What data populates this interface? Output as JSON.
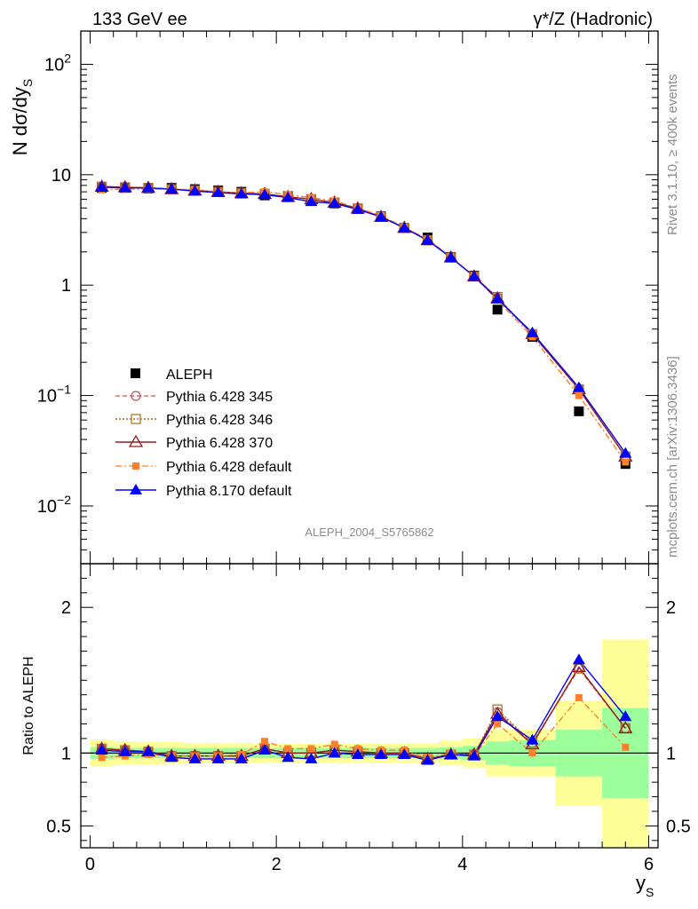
{
  "header": {
    "left_title": "133 GeV ee",
    "right_title": "γ*/Z (Hadronic)"
  },
  "side_labels": {
    "rivet": "Rivet 3.1.10, ≥ 400k events",
    "mcplots": "mcplots.cern.ch [arXiv:1306.3436]"
  },
  "watermark": "ALEPH_2004_S5765862",
  "colors": {
    "data": "#000000",
    "p345": "#c0545e",
    "p346": "#a8782a",
    "p370": "#9a1b1f",
    "p6def": "#ff7f2a",
    "p8def": "#0000ff",
    "band_inner": "#9cff9c",
    "band_outer": "#ffff99"
  },
  "chart_data": [
    {
      "type": "line",
      "yscale": "log",
      "ylabel": "N dσ/dy",
      "ylabel_sub": "S",
      "ylim": [
        0.003,
        200
      ],
      "ytick_labels": [
        "10^-2",
        "10^-1",
        "1",
        "10",
        "10^2"
      ],
      "x": [
        0.125,
        0.375,
        0.625,
        0.875,
        1.125,
        1.375,
        1.625,
        1.875,
        2.125,
        2.375,
        2.625,
        2.875,
        3.125,
        3.375,
        3.625,
        3.875,
        4.125,
        4.375,
        4.75,
        5.25,
        5.75
      ],
      "series": [
        {
          "name": "ALEPH",
          "values": [
            7.6,
            7.6,
            7.5,
            7.6,
            7.4,
            7.2,
            7.0,
            6.5,
            6.4,
            6.0,
            5.5,
            4.9,
            4.2,
            3.3,
            2.7,
            1.8,
            1.22,
            0.6,
            0.34,
            0.072,
            0.024
          ]
        },
        {
          "name": "Pythia 6.428 345",
          "values": [
            7.8,
            7.7,
            7.6,
            7.4,
            7.2,
            7.0,
            6.8,
            6.7,
            6.3,
            6.0,
            5.6,
            4.95,
            4.15,
            3.3,
            2.55,
            1.78,
            1.2,
            0.77,
            0.36,
            0.114,
            0.028
          ]
        },
        {
          "name": "Pythia 6.428 346",
          "values": [
            7.8,
            7.7,
            7.6,
            7.4,
            7.2,
            7.0,
            6.8,
            6.7,
            6.3,
            6.0,
            5.6,
            4.95,
            4.15,
            3.3,
            2.55,
            1.78,
            1.2,
            0.78,
            0.36,
            0.114,
            0.028
          ]
        },
        {
          "name": "Pythia 6.428 370",
          "values": [
            7.8,
            7.7,
            7.6,
            7.4,
            7.2,
            7.0,
            6.8,
            6.7,
            6.3,
            6.0,
            5.6,
            4.95,
            4.15,
            3.3,
            2.55,
            1.78,
            1.2,
            0.76,
            0.36,
            0.114,
            0.028
          ]
        },
        {
          "name": "Pythia 6.428 default",
          "values": [
            7.3,
            7.4,
            7.4,
            7.4,
            7.3,
            7.0,
            6.9,
            7.0,
            6.6,
            6.2,
            5.8,
            5.0,
            4.25,
            3.35,
            2.6,
            1.8,
            1.2,
            0.73,
            0.34,
            0.1,
            0.025
          ]
        },
        {
          "name": "Pythia 8.170 default",
          "values": [
            7.7,
            7.6,
            7.6,
            7.4,
            7.1,
            6.9,
            6.7,
            6.6,
            6.2,
            5.7,
            5.5,
            4.85,
            4.15,
            3.3,
            2.55,
            1.78,
            1.2,
            0.75,
            0.37,
            0.118,
            0.03
          ]
        }
      ]
    },
    {
      "type": "line",
      "ylabel": "Ratio to ALEPH",
      "xlabel": "y",
      "xlabel_sub": "S",
      "xlim": [
        -0.1,
        6.1
      ],
      "ylim": [
        0.35,
        2.3
      ],
      "xticks": [
        0,
        2,
        4,
        6
      ],
      "yticks": [
        0.5,
        1,
        2
      ],
      "x": [
        0.125,
        0.375,
        0.625,
        0.875,
        1.125,
        1.375,
        1.625,
        1.875,
        2.125,
        2.375,
        2.625,
        2.875,
        3.125,
        3.375,
        3.625,
        3.875,
        4.125,
        4.375,
        4.75,
        5.25,
        5.75
      ],
      "x_edges": [
        0,
        0.25,
        0.5,
        0.75,
        1.0,
        1.25,
        1.5,
        1.75,
        2.0,
        2.25,
        2.5,
        2.75,
        3.0,
        3.25,
        3.5,
        3.75,
        4.0,
        4.25,
        4.5,
        5.0,
        5.5,
        6.0
      ],
      "band_inner": [
        0.04,
        0.035,
        0.035,
        0.035,
        0.035,
        0.035,
        0.035,
        0.035,
        0.035,
        0.035,
        0.035,
        0.035,
        0.035,
        0.035,
        0.035,
        0.04,
        0.05,
        0.08,
        0.09,
        0.16,
        0.31
      ],
      "band_outer": [
        0.09,
        0.08,
        0.08,
        0.075,
        0.07,
        0.07,
        0.07,
        0.065,
        0.065,
        0.065,
        0.065,
        0.065,
        0.065,
        0.065,
        0.07,
        0.085,
        0.1,
        0.16,
        0.16,
        0.36,
        0.78
      ],
      "series": [
        {
          "name": "Pythia 6.428 345",
          "values": [
            1.03,
            1.02,
            1.01,
            0.98,
            0.98,
            0.98,
            0.98,
            1.03,
            1.0,
            1.0,
            1.02,
            1.01,
            1.0,
            1.0,
            0.96,
            0.99,
            0.99,
            1.28,
            1.07,
            1.58,
            1.17
          ]
        },
        {
          "name": "Pythia 6.428 346",
          "values": [
            1.03,
            1.02,
            1.01,
            0.98,
            0.98,
            0.98,
            0.98,
            1.03,
            1.0,
            1.0,
            1.02,
            1.01,
            1.0,
            1.0,
            0.96,
            0.99,
            0.99,
            1.3,
            1.07,
            1.58,
            1.17
          ]
        },
        {
          "name": "Pythia 6.428 370",
          "values": [
            1.03,
            1.02,
            1.01,
            0.98,
            0.98,
            0.98,
            0.98,
            1.03,
            1.0,
            1.0,
            1.02,
            1.01,
            1.0,
            1.0,
            0.96,
            0.99,
            0.99,
            1.27,
            1.06,
            1.59,
            1.17
          ]
        },
        {
          "name": "Pythia 6.428 default",
          "values": [
            0.97,
            0.98,
            0.99,
            0.98,
            0.98,
            0.98,
            0.99,
            1.08,
            1.03,
            1.03,
            1.06,
            1.03,
            1.02,
            1.02,
            0.97,
            1.0,
            0.98,
            1.2,
            1.0,
            1.38,
            1.04
          ]
        },
        {
          "name": "Pythia 8.170 default",
          "values": [
            1.02,
            1.01,
            1.01,
            0.97,
            0.96,
            0.96,
            0.96,
            1.02,
            0.97,
            0.96,
            1.0,
            0.99,
            0.99,
            0.99,
            0.95,
            0.99,
            0.98,
            1.25,
            1.09,
            1.64,
            1.25
          ]
        }
      ]
    }
  ]
}
